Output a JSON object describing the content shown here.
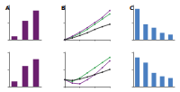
{
  "chart_data": [
    {
      "type": "bar",
      "title": "A",
      "categories": [
        null,
        null,
        null
      ],
      "values": [
        10,
        55,
        85
      ],
      "color": "#6b1f6e",
      "ylim": [
        0,
        100
      ],
      "yticks": [
        0,
        50,
        100
      ],
      "grid": false,
      "tick_labels": false
    },
    {
      "type": "bar",
      "categories": [
        null,
        null,
        null
      ],
      "values": [
        15,
        60,
        80
      ],
      "color": "#6b1f6e",
      "ylim": [
        0,
        100
      ],
      "yticks": [
        0,
        50,
        100
      ],
      "grid": false,
      "tick_labels": false
    },
    {
      "type": "line",
      "title": "B",
      "x": [
        0,
        1,
        2,
        3,
        4,
        5,
        6
      ],
      "xlim": [
        0,
        6
      ],
      "xticks": [
        0,
        2,
        4,
        6
      ],
      "ylim": [
        0,
        100
      ],
      "yticks": [
        0,
        50,
        100
      ],
      "grid": false,
      "tick_labels": false,
      "series": [
        {
          "color": "#2e9e4a",
          "values": [
            0,
            8,
            18,
            30,
            45,
            60,
            75
          ]
        },
        {
          "color": "#7a2a8a",
          "values": [
            0,
            10,
            22,
            35,
            50,
            65,
            85
          ]
        },
        {
          "color": "#222222",
          "values": [
            0,
            5,
            12,
            20,
            30,
            38,
            45
          ]
        }
      ]
    },
    {
      "type": "line",
      "x": [
        0,
        1,
        2,
        3,
        4,
        5,
        6
      ],
      "xlim": [
        0,
        6
      ],
      "xticks": [
        0,
        2,
        4,
        6
      ],
      "ylim": [
        0,
        100
      ],
      "yticks": [
        0,
        50,
        100
      ],
      "grid": false,
      "tick_labels": false,
      "series": [
        {
          "color": "#2e9e4a",
          "values": [
            20,
            15,
            25,
            40,
            55,
            70,
            85
          ]
        },
        {
          "color": "#7a2a8a",
          "values": [
            20,
            10,
            8,
            20,
            35,
            55,
            75
          ]
        },
        {
          "color": "#222222",
          "values": [
            20,
            18,
            22,
            28,
            35,
            42,
            50
          ]
        }
      ]
    },
    {
      "type": "bar",
      "title": "C",
      "categories": [
        null,
        null,
        null,
        null,
        null
      ],
      "values": [
        90,
        45,
        35,
        20,
        15
      ],
      "color": "#4a7fc1",
      "ylim": [
        0,
        100
      ],
      "yticks": [
        0,
        50,
        100
      ],
      "grid": false,
      "tick_labels": false
    },
    {
      "type": "bar",
      "categories": [
        null,
        null,
        null,
        null,
        null
      ],
      "values": [
        85,
        70,
        40,
        30,
        25
      ],
      "color": "#4a7fc1",
      "ylim": [
        0,
        100
      ],
      "yticks": [
        0,
        50,
        100
      ],
      "grid": false,
      "tick_labels": false
    }
  ]
}
